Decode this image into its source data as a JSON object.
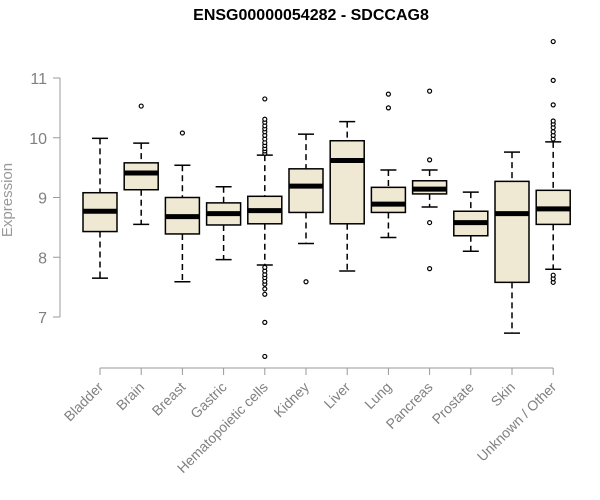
{
  "chart_data": {
    "type": "boxplot",
    "title": "ENSG00000054282 - SDCCAG8",
    "xlabel": "",
    "ylabel": "Expression",
    "y_ticks": [
      7,
      8,
      9,
      10,
      11
    ],
    "ylim": [
      6.3,
      11.7
    ],
    "grid": false,
    "legend": "none",
    "colors": {
      "box_fill": "#efe8d2",
      "box_stroke": "#000000",
      "axis": "#999999",
      "axis_text": "#808080"
    },
    "categories": [
      "Bladder",
      "Brain",
      "Breast",
      "Gastric",
      "Hematopoietic cells",
      "Kidney",
      "Liver",
      "Lung",
      "Pancreas",
      "Prostate",
      "Skin",
      "Unknown / Other"
    ],
    "boxes": [
      {
        "category": "Bladder",
        "whisker_low": 7.65,
        "q1": 8.43,
        "median": 8.77,
        "q3": 9.08,
        "whisker_high": 9.99,
        "outliers": []
      },
      {
        "category": "Brain",
        "whisker_low": 8.55,
        "q1": 9.13,
        "median": 9.41,
        "q3": 9.58,
        "whisker_high": 9.91,
        "outliers": [
          10.53
        ]
      },
      {
        "category": "Breast",
        "whisker_low": 7.59,
        "q1": 8.39,
        "median": 8.68,
        "q3": 9.0,
        "whisker_high": 9.54,
        "outliers": [
          10.08
        ]
      },
      {
        "category": "Gastric",
        "whisker_low": 7.96,
        "q1": 8.54,
        "median": 8.73,
        "q3": 8.91,
        "whisker_high": 9.18,
        "outliers": []
      },
      {
        "category": "Hematopoietic cells",
        "whisker_low": 7.87,
        "q1": 8.56,
        "median": 8.78,
        "q3": 9.02,
        "whisker_high": 9.71,
        "outliers": [
          6.34,
          6.91,
          7.38,
          7.47,
          7.55,
          7.6,
          7.66,
          7.71,
          7.77,
          7.83,
          9.74,
          9.78,
          9.82,
          9.87,
          9.92,
          9.98,
          10.04,
          10.1,
          10.15,
          10.2,
          10.26,
          10.31,
          10.65
        ]
      },
      {
        "category": "Kidney",
        "whisker_low": 8.23,
        "q1": 8.75,
        "median": 9.19,
        "q3": 9.48,
        "whisker_high": 10.06,
        "outliers": [
          7.59
        ]
      },
      {
        "category": "Liver",
        "whisker_low": 7.77,
        "q1": 8.56,
        "median": 9.62,
        "q3": 9.95,
        "whisker_high": 10.27,
        "outliers": []
      },
      {
        "category": "Lung",
        "whisker_low": 8.33,
        "q1": 8.75,
        "median": 8.89,
        "q3": 9.17,
        "whisker_high": 9.46,
        "outliers": [
          10.5,
          10.73
        ]
      },
      {
        "category": "Pancreas",
        "whisker_low": 8.84,
        "q1": 9.06,
        "median": 9.14,
        "q3": 9.28,
        "whisker_high": 9.46,
        "outliers": [
          7.81,
          8.58,
          9.63,
          10.78
        ]
      },
      {
        "category": "Prostate",
        "whisker_low": 8.1,
        "q1": 8.36,
        "median": 8.58,
        "q3": 8.77,
        "whisker_high": 9.09,
        "outliers": []
      },
      {
        "category": "Skin",
        "whisker_low": 6.73,
        "q1": 7.58,
        "median": 8.73,
        "q3": 9.27,
        "whisker_high": 9.76,
        "outliers": []
      },
      {
        "category": "Unknown / Other",
        "whisker_low": 7.8,
        "q1": 8.55,
        "median": 8.81,
        "q3": 9.12,
        "whisker_high": 9.93,
        "outliers": [
          7.58,
          7.64,
          7.7,
          9.98,
          10.04,
          10.1,
          10.17,
          10.23,
          10.28,
          10.55,
          10.96,
          11.61
        ]
      }
    ]
  }
}
